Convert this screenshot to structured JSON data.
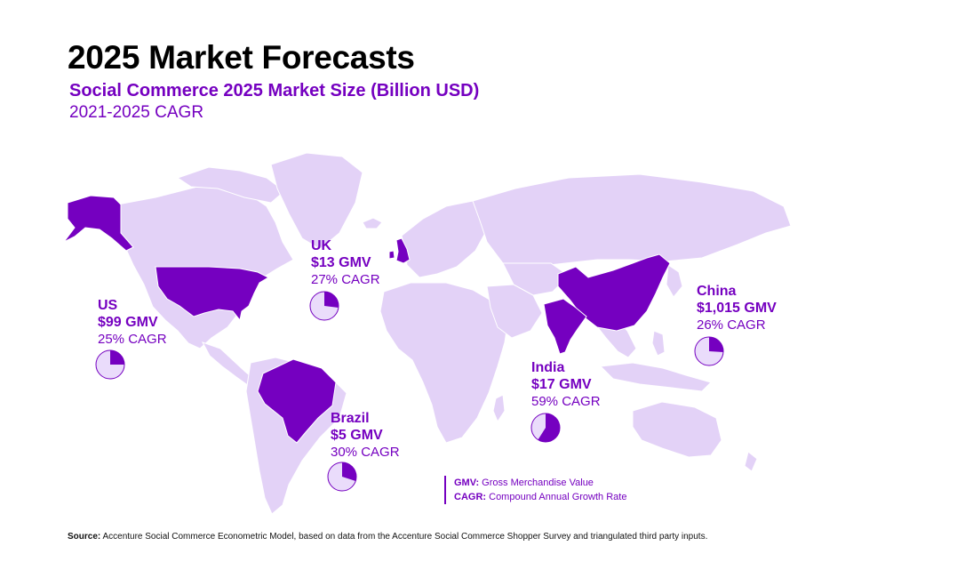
{
  "title": "2025 Market Forecasts",
  "subtitle": "Social Commerce 2025 Market Size (Billion USD)",
  "subtitle2": "2021-2025 CAGR",
  "colors": {
    "accent": "#7500c0",
    "land": "#e3d2f7",
    "highlight": "#7500c0",
    "pie_fill": "#eadcfb"
  },
  "markets": [
    {
      "name": "US",
      "gmv": "$99 GMV",
      "cagr": "25% CAGR",
      "cagr_value": 25
    },
    {
      "name": "UK",
      "gmv": "$13 GMV",
      "cagr": "27% CAGR",
      "cagr_value": 27
    },
    {
      "name": "China",
      "gmv": "$1,015 GMV",
      "cagr": "26% CAGR",
      "cagr_value": 26
    },
    {
      "name": "India",
      "gmv": "$17 GMV",
      "cagr": "59% CAGR",
      "cagr_value": 59
    },
    {
      "name": "Brazil",
      "gmv": "$5 GMV",
      "cagr": "30% CAGR",
      "cagr_value": 30
    }
  ],
  "legend": {
    "gmv_key": "GMV:",
    "gmv_text": " Gross Merchandise Value",
    "cagr_key": "CAGR:",
    "cagr_text": " Compound Annual Growth Rate"
  },
  "source": {
    "label": "Source:",
    "text": " Accenture Social Commerce Econometric Model, based on data from the Accenture Social Commerce Shopper Survey and triangulated third party inputs."
  }
}
